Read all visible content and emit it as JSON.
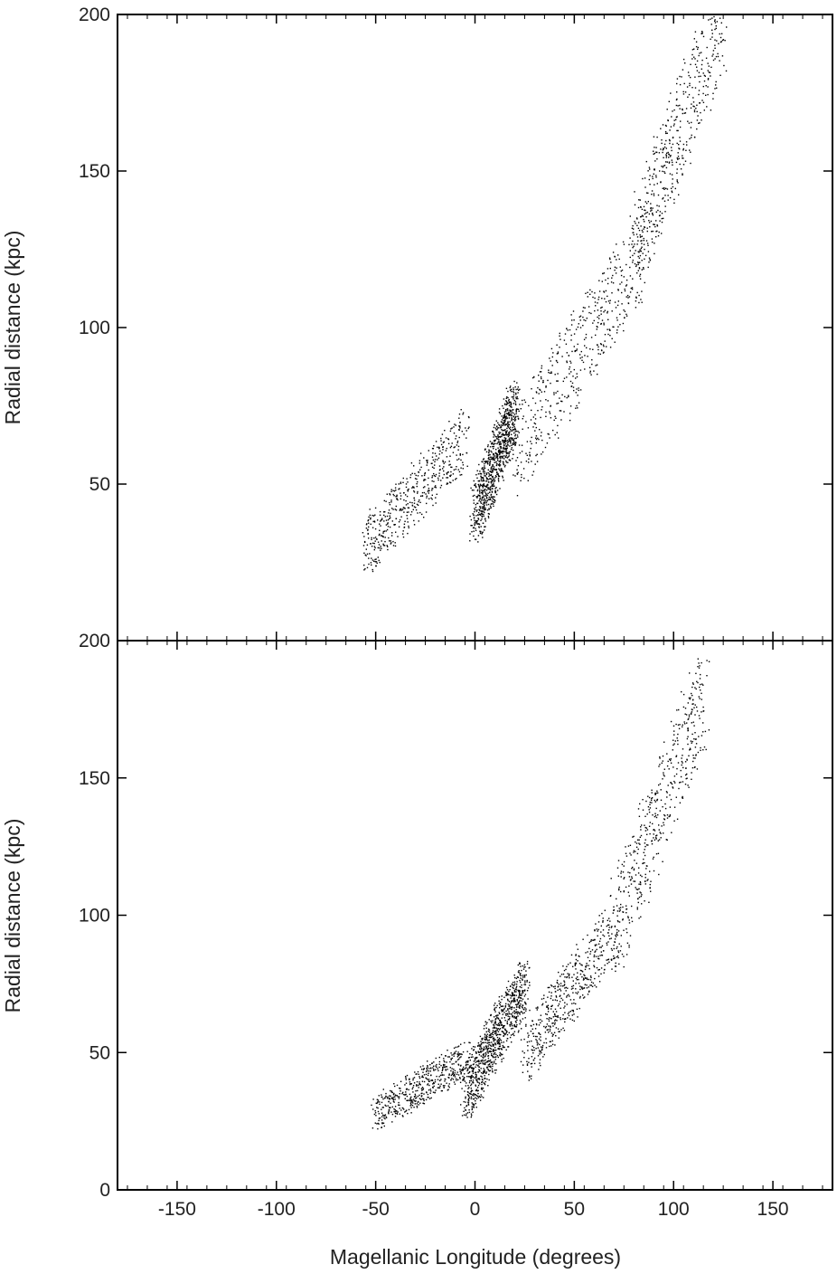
{
  "chart_data": [
    {
      "type": "scatter",
      "panel": "top",
      "ylabel": "Radial distance (kpc)",
      "xlim": [
        -180,
        180
      ],
      "ylim": [
        0,
        200
      ],
      "y_tick_labels": [
        "50",
        "100",
        "150",
        "200"
      ],
      "features": [
        {
          "description": "dense core",
          "x": [
            0,
            20
          ],
          "y": [
            40,
            75
          ]
        },
        {
          "description": "main arm",
          "x": [
            20,
            85
          ],
          "y": [
            60,
            125
          ]
        },
        {
          "description": "leading tail",
          "x": [
            -55,
            -5
          ],
          "y": [
            30,
            65
          ]
        },
        {
          "description": "far arm extension",
          "x": [
            80,
            125
          ],
          "y": [
            125,
            200
          ]
        }
      ]
    },
    {
      "type": "scatter",
      "panel": "bottom",
      "ylabel": "Radial distance (kpc)",
      "xlabel": "Magellanic Longitude (degrees)",
      "xlim": [
        -180,
        180
      ],
      "ylim": [
        0,
        200
      ],
      "x_tick_labels": [
        "-150",
        "-100",
        "-50",
        "0",
        "50",
        "100",
        "150"
      ],
      "y_tick_labels": [
        "0",
        "50",
        "100",
        "150",
        "200"
      ],
      "features": [
        {
          "description": "dense core",
          "x": [
            -5,
            25
          ],
          "y": [
            35,
            75
          ]
        },
        {
          "description": "main arm",
          "x": [
            25,
            70
          ],
          "y": [
            50,
            95
          ]
        },
        {
          "description": "leading tail",
          "x": [
            -50,
            -5
          ],
          "y": [
            28,
            48
          ]
        },
        {
          "description": "sparse extension",
          "x": [
            70,
            115
          ],
          "y": [
            95,
            180
          ]
        }
      ]
    }
  ]
}
